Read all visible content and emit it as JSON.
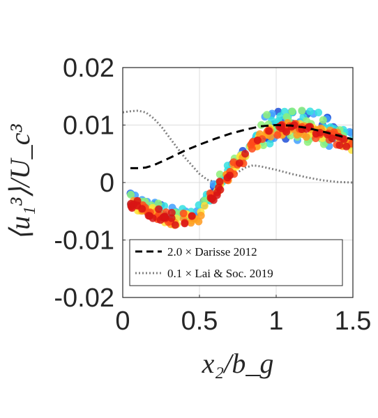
{
  "chart_data": {
    "type": "scatter",
    "xlabel": "x₂/b_g",
    "ylabel": "⟨u₁³⟩/U_c³",
    "xlim": [
      0,
      1.5
    ],
    "ylim": [
      -0.02,
      0.02
    ],
    "x_ticks": [
      "0",
      "0.5",
      "1",
      "1.5"
    ],
    "y_ticks": [
      "0.02",
      "0.01",
      "0",
      "-0.01",
      "-0.02"
    ],
    "grid": true,
    "legend_position": "bottom",
    "colors": {
      "scatter_palette": [
        "#1f4fd8",
        "#3fa0ff",
        "#35e0e0",
        "#8ff07a",
        "#ffe33a",
        "#ff9a1f",
        "#ff4a1a",
        "#d81414"
      ],
      "darisse": "#000000",
      "lai": "#808080",
      "grid": "#dcdcdc",
      "axes": "#262626"
    },
    "scatter_profile": {
      "x": [
        0.05,
        0.1,
        0.15,
        0.2,
        0.25,
        0.3,
        0.35,
        0.4,
        0.45,
        0.5,
        0.55,
        0.6,
        0.65,
        0.7,
        0.75,
        0.8,
        0.85,
        0.9,
        0.95,
        1.0,
        1.05,
        1.1,
        1.15,
        1.2,
        1.25,
        1.3,
        1.35,
        1.4,
        1.45,
        1.5
      ],
      "y": [
        -0.0035,
        -0.004,
        -0.0045,
        -0.005,
        -0.0055,
        -0.006,
        -0.0062,
        -0.0062,
        -0.006,
        -0.0055,
        -0.0035,
        -0.0015,
        0.0005,
        0.002,
        0.0035,
        0.005,
        0.0065,
        0.0078,
        0.0088,
        0.0093,
        0.0095,
        0.0095,
        0.0094,
        0.0092,
        0.009,
        0.0087,
        0.0083,
        0.0078,
        0.0073,
        0.0068
      ]
    },
    "series": [
      {
        "name": "2.0 × Darisse 2012",
        "style": "dashed",
        "x": [
          0.05,
          0.1,
          0.15,
          0.2,
          0.3,
          0.4,
          0.5,
          0.6,
          0.7,
          0.8,
          0.9,
          1.0,
          1.1,
          1.2,
          1.3,
          1.4,
          1.5
        ],
        "y": [
          0.0025,
          0.0025,
          0.0026,
          0.003,
          0.0042,
          0.0055,
          0.0066,
          0.0076,
          0.0085,
          0.0092,
          0.0098,
          0.01,
          0.0099,
          0.0095,
          0.0089,
          0.0082,
          0.0075
        ]
      },
      {
        "name": "0.1 × Lai & Soc. 2019",
        "style": "dotted",
        "x": [
          0,
          0.05,
          0.1,
          0.15,
          0.2,
          0.25,
          0.3,
          0.35,
          0.4,
          0.45,
          0.5,
          0.55,
          0.6,
          0.65,
          0.7,
          0.75,
          0.8,
          0.85,
          0.9,
          1.0,
          1.1,
          1.2,
          1.3,
          1.4,
          1.5
        ],
        "y": [
          0.0122,
          0.0124,
          0.0125,
          0.0122,
          0.0112,
          0.0098,
          0.008,
          0.0062,
          0.0045,
          0.003,
          0.0015,
          0.0005,
          0.0001,
          0.0002,
          0.0008,
          0.0018,
          0.0026,
          0.003,
          0.0028,
          0.0022,
          0.0015,
          0.0009,
          0.0004,
          0.0001,
          0.0
        ]
      }
    ],
    "legend": [
      "2.0 × Darisse 2012",
      "0.1 × Lai & Soc. 2019"
    ]
  }
}
